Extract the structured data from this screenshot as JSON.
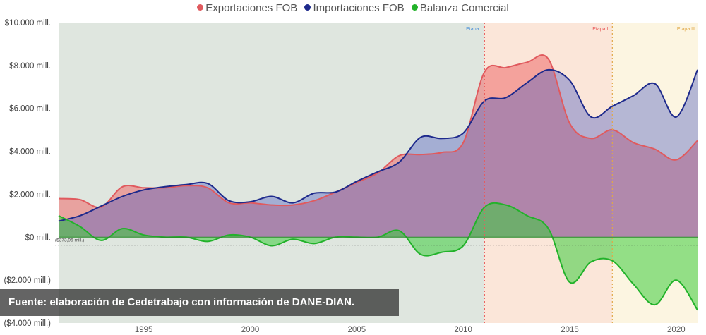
{
  "legend": [
    {
      "label": "Exportaciones FOB",
      "color": "#e05a5e"
    },
    {
      "label": "Importaciones FOB",
      "color": "#1e2a8c"
    },
    {
      "label": "Balanza Comercial",
      "color": "#22b22a"
    }
  ],
  "caption": "Fuente: elaboración de Cedetrabajo con información de DANE-DIAN.",
  "avg_line_label": "($373,96 mill.)",
  "chart_data": {
    "type": "area",
    "title": "",
    "xlabel": "",
    "ylabel": "",
    "xlim": [
      1991,
      2021
    ],
    "ylim": [
      -4000,
      10000
    ],
    "grid": false,
    "legend_position": "top",
    "x_ticks": [
      "1995",
      "2000",
      "2005",
      "2010",
      "2015",
      "2020"
    ],
    "y_ticks": [
      {
        "value": 10000,
        "label": "$10.000 mill."
      },
      {
        "value": 8000,
        "label": "$8.000 mill."
      },
      {
        "value": 6000,
        "label": "$6.000 mill."
      },
      {
        "value": 4000,
        "label": "$4.000 mill."
      },
      {
        "value": 2000,
        "label": "$2.000 mill."
      },
      {
        "value": 0,
        "label": "$0 mill."
      },
      {
        "value": -2000,
        "label": "($2.000 mill.)"
      },
      {
        "value": -4000,
        "label": "($4.000 mill.)"
      }
    ],
    "average_line": -374,
    "x": [
      1991,
      1992,
      1993,
      1994,
      1995,
      1996,
      1997,
      1998,
      1999,
      2000,
      2001,
      2002,
      2003,
      2004,
      2005,
      2006,
      2007,
      2008,
      2009,
      2010,
      2011,
      2012,
      2013,
      2014,
      2015,
      2016,
      2017,
      2018,
      2019,
      2020,
      2021
    ],
    "series": [
      {
        "name": "Exportaciones FOB",
        "color": "#e05a5e",
        "values": [
          1800,
          1750,
          1400,
          2350,
          2300,
          2300,
          2400,
          2300,
          1600,
          1600,
          1500,
          1500,
          1700,
          2100,
          2550,
          3000,
          3800,
          3850,
          3950,
          4400,
          7700,
          7900,
          8150,
          8300,
          5300,
          4600,
          5000,
          4400,
          4100,
          3600,
          4500
        ]
      },
      {
        "name": "Importaciones FOB",
        "color": "#1e2a8c",
        "values": [
          750,
          1000,
          1450,
          1900,
          2200,
          2350,
          2450,
          2500,
          1700,
          1650,
          1900,
          1600,
          2050,
          2100,
          2600,
          3050,
          3500,
          4650,
          4600,
          4850,
          6350,
          6500,
          7200,
          7800,
          7300,
          5600,
          6100,
          6600,
          7150,
          5600,
          7800
        ]
      },
      {
        "name": "Balanza Comercial",
        "color": "#22b22a",
        "values": [
          1000,
          500,
          -150,
          400,
          100,
          0,
          0,
          -200,
          100,
          0,
          -400,
          -100,
          -300,
          0,
          0,
          0,
          300,
          -800,
          -700,
          -400,
          1400,
          1500,
          1000,
          400,
          -2100,
          -1150,
          -1100,
          -2200,
          -3150,
          -2000,
          -3400
        ]
      }
    ],
    "stages": [
      {
        "label": "Etapa I",
        "start": 1991,
        "end": 2011,
        "color": "#dfe6df",
        "line_color": "#4b8fd8"
      },
      {
        "label": "Etapa II",
        "start": 2011,
        "end": 2017,
        "color": "#fbe6d9",
        "line_color": "#e85a5a"
      },
      {
        "label": "Etapa III",
        "start": 2017,
        "end": 2021,
        "color": "#fcf5e1",
        "line_color": "#e0a847"
      }
    ]
  }
}
